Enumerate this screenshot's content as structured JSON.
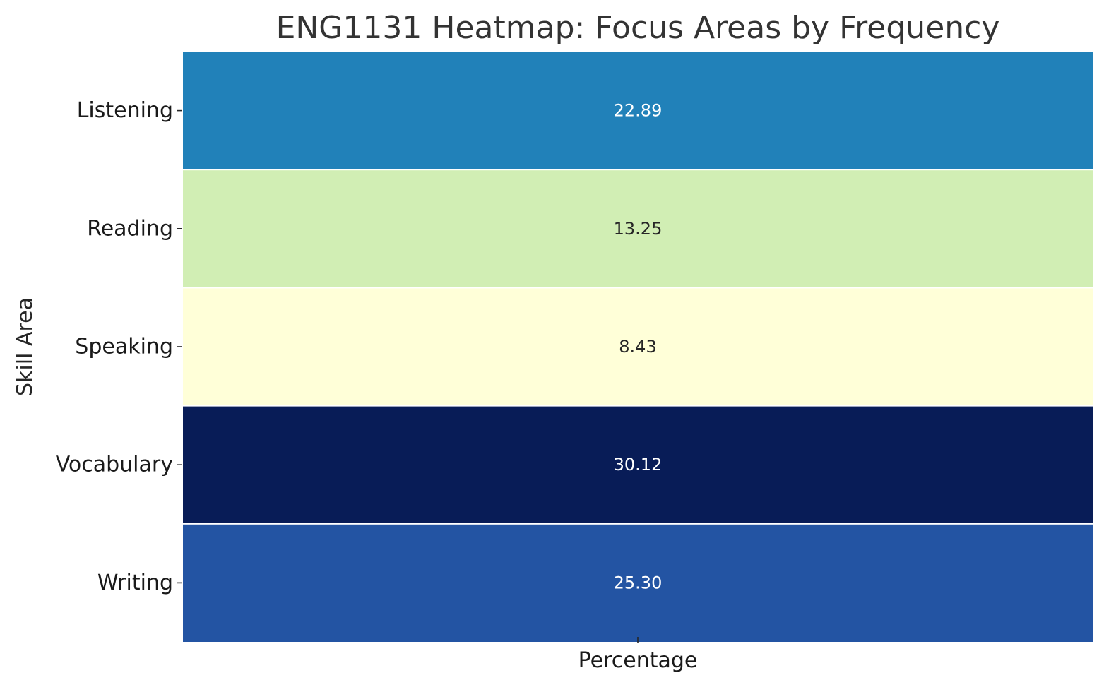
{
  "chart_data": {
    "type": "heatmap",
    "title": "ENG1131 Heatmap: Focus Areas by Frequency",
    "xlabel": "",
    "ylabel": "Skill Area",
    "columns": [
      "Percentage"
    ],
    "rows": [
      "Listening",
      "Reading",
      "Speaking",
      "Vocabulary",
      "Writing"
    ],
    "values": [
      [
        22.89
      ],
      [
        13.25
      ],
      [
        8.43
      ],
      [
        30.12
      ],
      [
        25.3
      ]
    ],
    "value_labels": [
      "22.89",
      "13.25",
      "8.43",
      "30.12",
      "25.30"
    ],
    "colormap": "YlGnBu",
    "colorbar": false,
    "grid": false,
    "cell_colors": [
      "#2181b9",
      "#d1eeb4",
      "#ffffd8",
      "#081c57",
      "#2354a3"
    ],
    "label_colors": [
      "#ffffff",
      "#262626",
      "#262626",
      "#ffffff",
      "#ffffff"
    ]
  }
}
